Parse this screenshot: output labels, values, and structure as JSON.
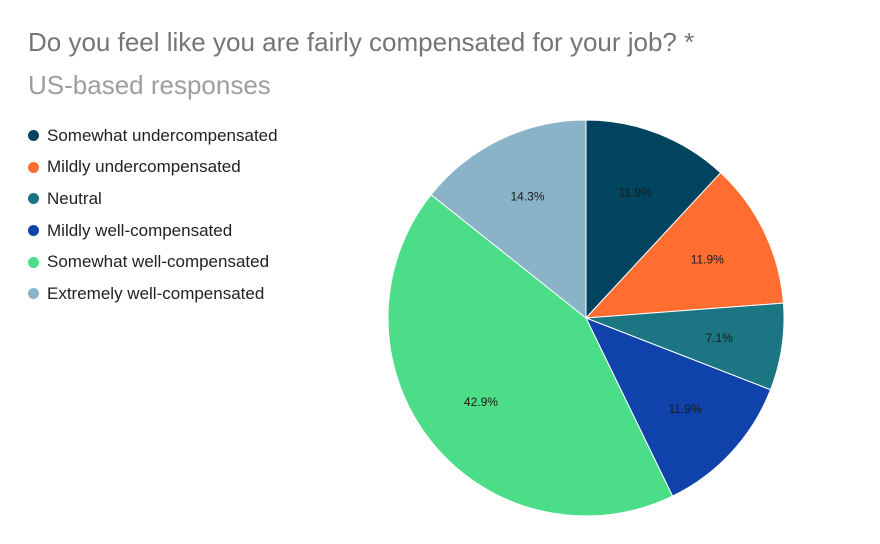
{
  "chart_data": {
    "type": "pie",
    "title": "Do you feel like you are fairly compensated for your job? *",
    "subtitle": "US-based responses",
    "legend_position": "left",
    "categories": [
      "Somewhat undercompensated",
      "Mildly undercompensated",
      "Neutral",
      "Mildly well-compensated",
      "Somewhat well-compensated",
      "Extremely well-compensated"
    ],
    "values": [
      11.9,
      11.9,
      7.1,
      11.9,
      42.9,
      14.3
    ],
    "labels": [
      "11.9%",
      "11.9%",
      "7.1%",
      "11.9%",
      "42.9%",
      "14.3%"
    ],
    "colors": [
      "#01445f",
      "#ff6d31",
      "#1c7583",
      "#0f42aa",
      "#4bdd88",
      "#8ab3c8"
    ]
  }
}
